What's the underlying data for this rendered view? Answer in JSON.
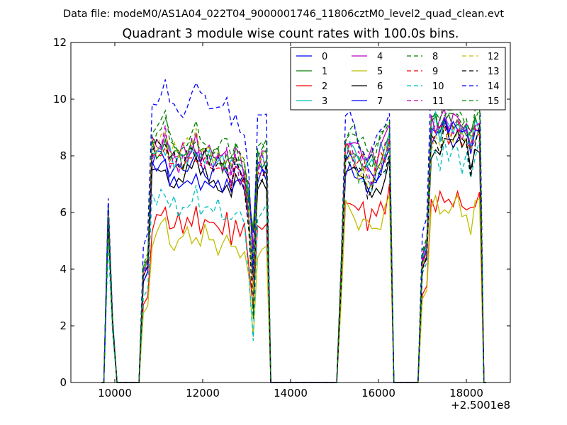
{
  "chart_data": {
    "type": "line",
    "suptitle": "Data file: modeM0/AS1A04_022T04_9000001746_11806cztM0_level2_quad_clean.evt",
    "title": "Quadrant 3 module wise count rates with 100.0s bins.",
    "xlabel": "",
    "ylabel": "",
    "x_offset_label": "+2.5001e8",
    "xlim": [
      9000,
      19000
    ],
    "ylim": [
      0,
      12
    ],
    "xticks": [
      10000,
      12000,
      14000,
      16000,
      18000
    ],
    "xtick_labels": [
      "10000",
      "12000",
      "14000",
      "16000",
      "18000"
    ],
    "yticks": [
      0,
      2,
      4,
      6,
      8,
      10,
      12
    ],
    "ytick_labels": [
      "0",
      "2",
      "4",
      "6",
      "8",
      "10",
      "12"
    ],
    "legend_position": "top-right",
    "legend_columns": 4,
    "segments": [
      {
        "start": 9850,
        "n": 3
      },
      {
        "start": 10650,
        "n": 29
      },
      {
        "start": 15150,
        "n": 12
      },
      {
        "start": 17000,
        "n": 14
      }
    ],
    "series": [
      {
        "name": "0",
        "color": "#0000ff",
        "dash": false,
        "levels": [
          6.3,
          7.5,
          7.5,
          8.6
        ]
      },
      {
        "name": "1",
        "color": "#008000",
        "dash": false,
        "levels": [
          6.0,
          7.9,
          7.8,
          8.9
        ]
      },
      {
        "name": "2",
        "color": "#ff0000",
        "dash": false,
        "levels": [
          5.7,
          5.5,
          6.0,
          6.2
        ]
      },
      {
        "name": "3",
        "color": "#00bfbf",
        "dash": false,
        "levels": [
          5.9,
          7.8,
          7.9,
          8.8
        ]
      },
      {
        "name": "4",
        "color": "#bf00bf",
        "dash": false,
        "levels": [
          6.1,
          8.0,
          8.1,
          9.0
        ]
      },
      {
        "name": "5",
        "color": "#bfbf00",
        "dash": false,
        "levels": [
          5.5,
          4.9,
          5.6,
          5.9
        ]
      },
      {
        "name": "6",
        "color": "#000000",
        "dash": false,
        "levels": [
          5.8,
          7.1,
          6.9,
          8.1
        ]
      },
      {
        "name": "7",
        "color": "#0000ff",
        "dash": false,
        "levels": [
          5.9,
          7.1,
          7.3,
          8.4
        ]
      },
      {
        "name": "8",
        "color": "#008000",
        "dash": true,
        "levels": [
          6.2,
          8.3,
          8.2,
          9.1
        ]
      },
      {
        "name": "9",
        "color": "#ff0000",
        "dash": true,
        "levels": [
          5.8,
          7.5,
          7.6,
          8.5
        ]
      },
      {
        "name": "10",
        "color": "#00bfbf",
        "dash": true,
        "levels": [
          4.9,
          6.0,
          7.2,
          7.7
        ]
      },
      {
        "name": "11",
        "color": "#bf00bf",
        "dash": true,
        "levels": [
          6.1,
          7.7,
          7.6,
          8.6
        ]
      },
      {
        "name": "12",
        "color": "#bfbf00",
        "dash": true,
        "levels": [
          5.9,
          8.0,
          7.4,
          8.3
        ]
      },
      {
        "name": "13",
        "color": "#000000",
        "dash": true,
        "levels": [
          5.7,
          7.5,
          7.0,
          8.0
        ]
      },
      {
        "name": "14",
        "color": "#0000ff",
        "dash": true,
        "levels": [
          6.5,
          9.6,
          8.5,
          10.6
        ]
      },
      {
        "name": "15",
        "color": "#008000",
        "dash": true,
        "levels": [
          6.0,
          8.1,
          8.2,
          9.3
        ]
      }
    ]
  }
}
